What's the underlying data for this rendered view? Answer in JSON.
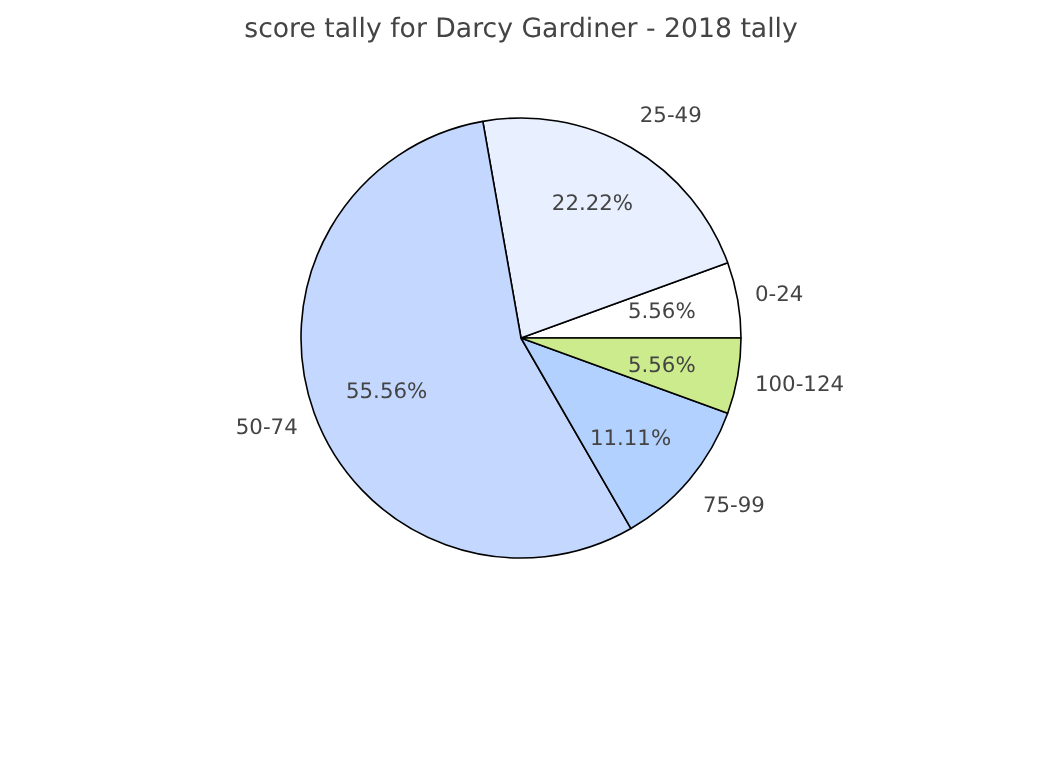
{
  "chart_data": {
    "type": "pie",
    "title": "score tally for Darcy Gardiner - 2018 tally",
    "categories": [
      "0-24",
      "25-49",
      "50-74",
      "75-99",
      "100-124"
    ],
    "values": [
      5.56,
      22.22,
      55.56,
      11.11,
      5.56
    ],
    "colors": [
      "#ffffff",
      "#e8f0ff",
      "#c4d8ff",
      "#b3d1ff",
      "#cceb8c"
    ],
    "value_labels": [
      "5.56%",
      "22.22%",
      "55.56%",
      "11.11%",
      "5.56%"
    ]
  }
}
